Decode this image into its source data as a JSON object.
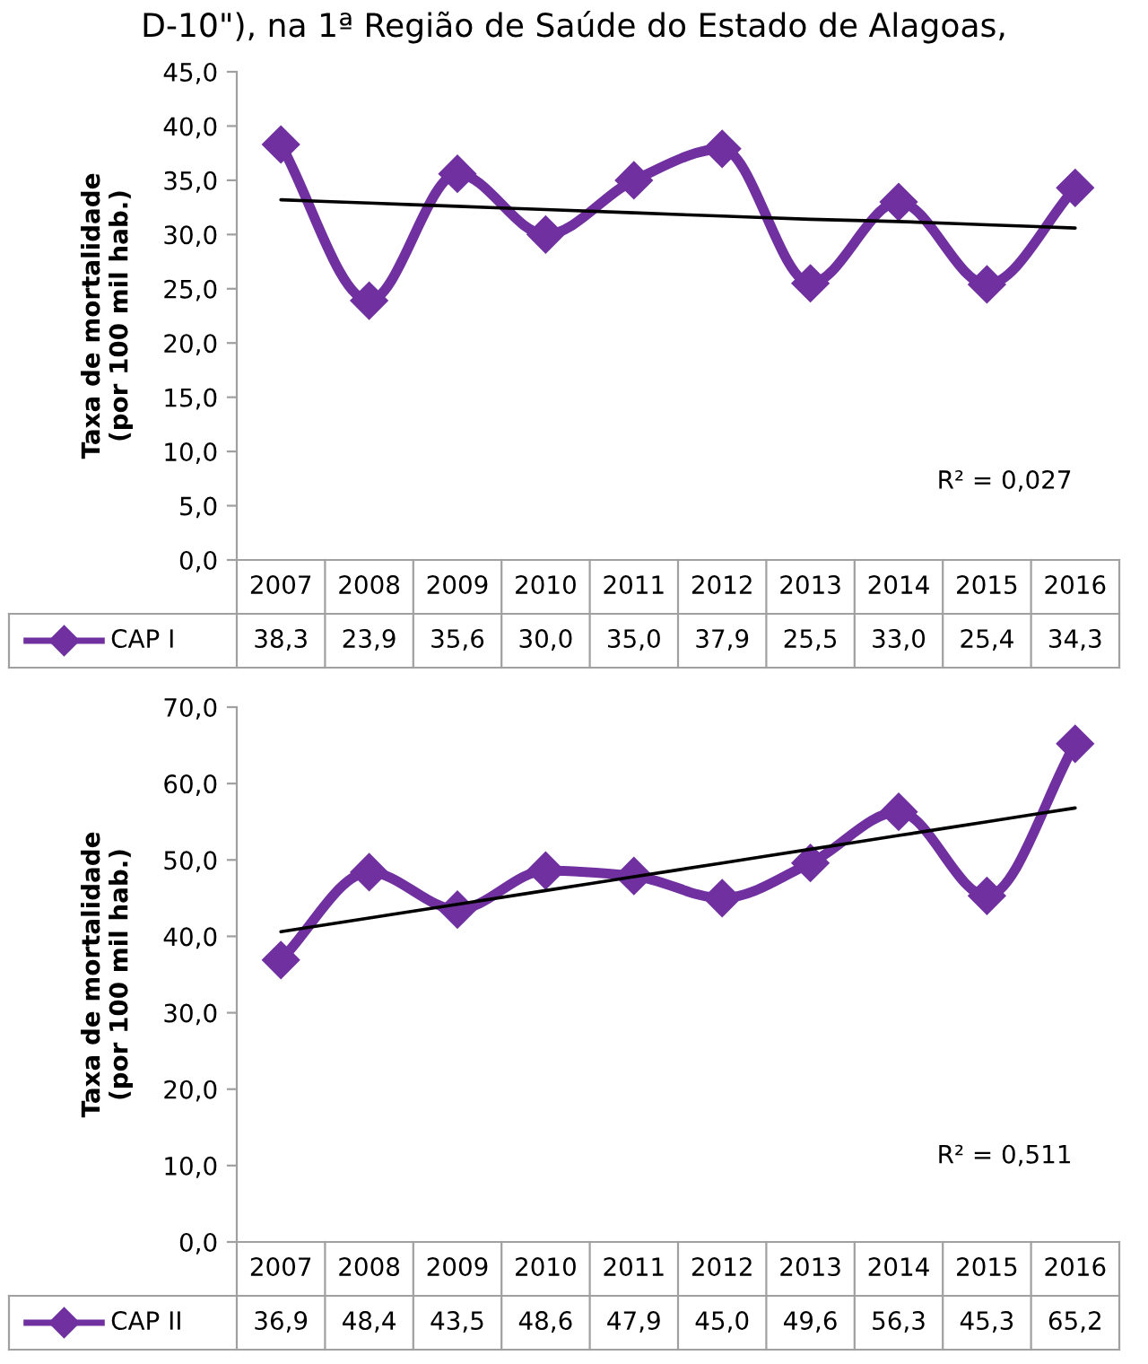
{
  "chart_data": [
    {
      "type": "line",
      "title": "D-10\"), na 1ª Região de Saúde do Estado de Alagoas,",
      "ylabel": "Taxa de mortalidade\n(por 100 mil hab.)",
      "categories": [
        "2007",
        "2008",
        "2009",
        "2010",
        "2011",
        "2012",
        "2013",
        "2014",
        "2015",
        "2016"
      ],
      "marker": "diamond",
      "ylim": [
        0,
        45
      ],
      "yticks": [
        {
          "value": 0,
          "label": "0,0"
        },
        {
          "value": 5,
          "label": "5,0"
        },
        {
          "value": 10,
          "label": "10,0"
        },
        {
          "value": 15,
          "label": "15,0"
        },
        {
          "value": 20,
          "label": "20,0"
        },
        {
          "value": 25,
          "label": "25,0"
        },
        {
          "value": 30,
          "label": "30,0"
        },
        {
          "value": 35,
          "label": "35,0"
        },
        {
          "value": 40,
          "label": "40,0"
        },
        {
          "value": 45,
          "label": "45,0"
        }
      ],
      "series": [
        {
          "name": "CAP I",
          "color": "#7030a0",
          "values": [
            38.3,
            23.9,
            35.6,
            30.0,
            35.0,
            37.9,
            25.5,
            33.0,
            25.4,
            34.3
          ],
          "value_labels": [
            "38,3",
            "23,9",
            "35,6",
            "30,0",
            "35,0",
            "37,9",
            "25,5",
            "33,0",
            "25,4",
            "34,3"
          ]
        },
        {
          "type": "line",
          "color": "#000000",
          "marker": "none",
          "values": [
            33.2,
            32.9,
            32.6,
            32.3,
            32.0,
            31.7,
            31.4,
            31.2,
            30.9,
            30.6
          ]
        }
      ],
      "annotations": [
        "R² = 0,027"
      ]
    },
    {
      "type": "line",
      "ylabel": "Taxa de mortalidade\n(por 100 mil hab.)",
      "categories": [
        "2007",
        "2008",
        "2009",
        "2010",
        "2011",
        "2012",
        "2013",
        "2014",
        "2015",
        "2016"
      ],
      "marker": "diamond",
      "ylim": [
        0,
        70
      ],
      "yticks": [
        {
          "value": 0,
          "label": "0,0"
        },
        {
          "value": 10,
          "label": "10,0"
        },
        {
          "value": 20,
          "label": "20,0"
        },
        {
          "value": 30,
          "label": "30,0"
        },
        {
          "value": 40,
          "label": "40,0"
        },
        {
          "value": 50,
          "label": "50,0"
        },
        {
          "value": 60,
          "label": "60,0"
        },
        {
          "value": 70,
          "label": "70,0"
        }
      ],
      "series": [
        {
          "name": "CAP II",
          "color": "#7030a0",
          "values": [
            36.9,
            48.4,
            43.5,
            48.6,
            47.9,
            45.0,
            49.6,
            56.3,
            45.3,
            65.2
          ],
          "value_labels": [
            "36,9",
            "48,4",
            "43,5",
            "48,6",
            "47,9",
            "45,0",
            "49,6",
            "56,3",
            "45,3",
            "65,2"
          ]
        },
        {
          "type": "line",
          "color": "#000000",
          "marker": "none",
          "values": [
            40.6,
            42.4,
            44.2,
            46.0,
            47.8,
            49.6,
            51.4,
            53.2,
            55.0,
            56.8
          ]
        }
      ],
      "annotations": [
        "R² = 0,511"
      ]
    }
  ]
}
